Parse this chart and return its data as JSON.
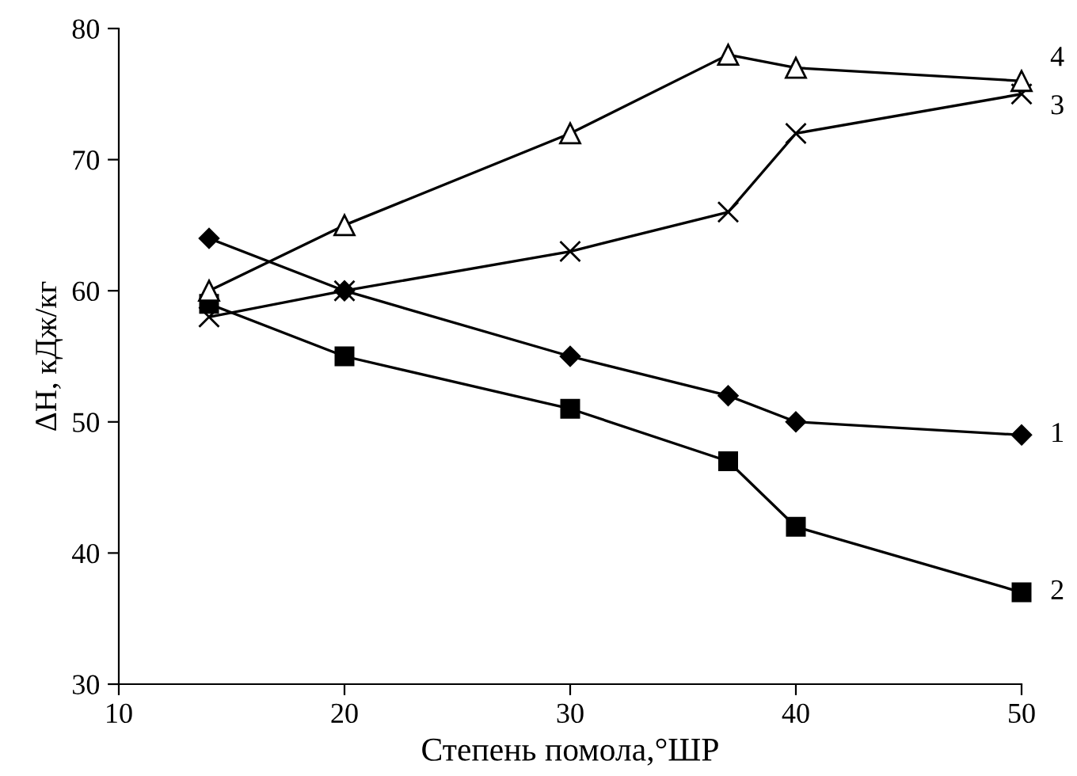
{
  "chart_data": {
    "type": "line",
    "xlabel": "Степень помола,°ШР",
    "ylabel": "ΔH, кДж/кг",
    "x": [
      14,
      20,
      30,
      37,
      40,
      50
    ],
    "series": [
      {
        "name": "1",
        "color": "#000000",
        "marker": "diamond",
        "values": [
          64,
          60,
          55,
          52,
          50,
          49
        ]
      },
      {
        "name": "2",
        "color": "#000000",
        "marker": "square",
        "values": [
          59,
          55,
          51,
          47,
          42,
          37
        ]
      },
      {
        "name": "3",
        "color": "#000000",
        "marker": "cross",
        "values": [
          58,
          60,
          63,
          66,
          72,
          75
        ]
      },
      {
        "name": "4",
        "color": "#000000",
        "marker": "triangle",
        "values": [
          60,
          65,
          72,
          78,
          77,
          76
        ]
      }
    ],
    "xlim": [
      10,
      50
    ],
    "ylim": [
      30,
      80
    ],
    "xticks": [
      10,
      20,
      30,
      40,
      50
    ],
    "yticks": [
      30,
      40,
      50,
      60,
      70,
      80
    ],
    "grid": false,
    "legend": false,
    "line_style": "solid"
  }
}
